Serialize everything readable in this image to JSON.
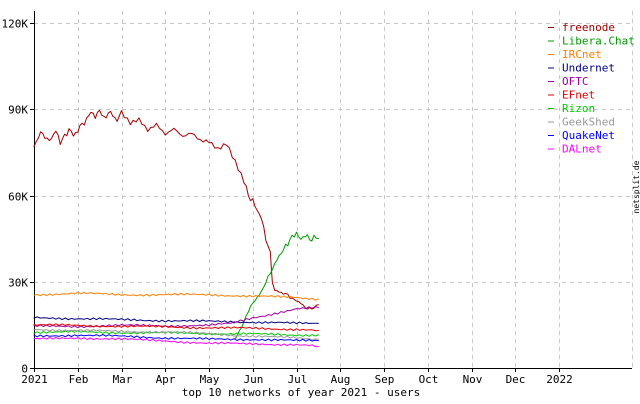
{
  "chart_data": {
    "type": "line",
    "title": "top 10 networks of year 2021 - users",
    "watermark": "netsplit.de",
    "x_ticks": [
      "2021",
      "Feb",
      "Mar",
      "Apr",
      "May",
      "Jun",
      "Jul",
      "Aug",
      "Sep",
      "Oct",
      "Nov",
      "Dec",
      "2022"
    ],
    "y_ticks": [
      "0",
      "30K",
      "60K",
      "90K",
      "120K"
    ],
    "ylim": [
      0,
      120000
    ],
    "xlim_months": [
      0,
      12
    ],
    "grid": true,
    "legend_position": "top-right",
    "series": [
      {
        "name": "freenode",
        "color": "#a00000",
        "x": [
          0.0,
          0.1,
          0.2,
          0.3,
          0.4,
          0.5,
          0.6,
          0.7,
          0.8,
          0.9,
          1.0,
          1.1,
          1.2,
          1.3,
          1.4,
          1.5,
          1.6,
          1.7,
          1.8,
          1.9,
          2.0,
          2.2,
          2.4,
          2.6,
          2.8,
          3.0,
          3.2,
          3.4,
          3.6,
          3.8,
          4.0,
          4.2,
          4.4,
          4.6,
          4.8,
          4.9,
          5.0,
          5.1,
          5.2,
          5.3,
          5.4,
          5.45,
          5.5,
          5.6,
          5.7,
          5.8,
          5.9,
          6.0,
          6.1,
          6.2,
          6.3,
          6.4,
          6.5
        ],
        "values": [
          77000,
          80500,
          82000,
          79000,
          80000,
          82500,
          78500,
          80500,
          83000,
          81000,
          82500,
          85000,
          86000,
          89500,
          87000,
          90000,
          86500,
          89000,
          88000,
          86000,
          89000,
          85500,
          87000,
          83000,
          85000,
          81000,
          83000,
          80000,
          81500,
          79000,
          79000,
          76500,
          78500,
          72000,
          65000,
          60000,
          58000,
          55000,
          52000,
          45000,
          40000,
          30000,
          27000,
          26500,
          26000,
          25500,
          24000,
          23500,
          22500,
          21000,
          20500,
          21000,
          22000
        ]
      },
      {
        "name": "Libera.Chat",
        "color": "#009900",
        "x": [
          4.6,
          4.7,
          4.8,
          4.9,
          5.0,
          5.1,
          5.2,
          5.3,
          5.4,
          5.5,
          5.6,
          5.7,
          5.8,
          5.9,
          6.0,
          6.1,
          6.2,
          6.3,
          6.4,
          6.5
        ],
        "values": [
          10000,
          13000,
          16000,
          20000,
          22500,
          24500,
          26500,
          30000,
          33000,
          36000,
          39000,
          41000,
          43500,
          45500,
          47000,
          44500,
          46500,
          44500,
          45500,
          45000
        ]
      },
      {
        "name": "IRCnet",
        "color": "#ff8000",
        "x": [
          0,
          1,
          2,
          3,
          4,
          5,
          6,
          6.5
        ],
        "values": [
          25500,
          26000,
          25500,
          25500,
          25500,
          25000,
          24500,
          24000
        ]
      },
      {
        "name": "Undernet",
        "color": "#000080",
        "x": [
          0,
          1,
          2,
          3,
          4,
          5,
          5.5,
          6,
          6.5
        ],
        "values": [
          17500,
          17200,
          16800,
          16500,
          16200,
          16000,
          15800,
          15500,
          15500
        ]
      },
      {
        "name": "OFTC",
        "color": "#a000a0",
        "x": [
          0,
          1,
          2,
          3,
          4,
          4.5,
          5,
          5.5,
          6,
          6.5
        ],
        "values": [
          14500,
          14500,
          14800,
          14700,
          14800,
          15500,
          17500,
          19000,
          20500,
          21000
        ]
      },
      {
        "name": "EFnet",
        "color": "#e00000",
        "x": [
          0,
          1,
          2,
          3,
          4,
          5,
          6,
          6.5
        ],
        "values": [
          15000,
          14800,
          14500,
          14300,
          14000,
          13800,
          13500,
          13000
        ]
      },
      {
        "name": "Rizon",
        "color": "#00cc00",
        "x": [
          0,
          1,
          2,
          3,
          4,
          5,
          6,
          6.5
        ],
        "values": [
          12500,
          12500,
          12300,
          12200,
          12000,
          11800,
          11500,
          11500
        ]
      },
      {
        "name": "GeekShed",
        "color": "#999999",
        "x": [
          0,
          1,
          2,
          3,
          4,
          5,
          6,
          6.5
        ],
        "values": [
          13500,
          13000,
          12800,
          12500,
          12000,
          11000,
          10500,
          10000
        ]
      },
      {
        "name": "QuakeNet",
        "color": "#0000ff",
        "x": [
          0,
          1,
          2,
          3,
          4,
          5,
          6,
          6.5
        ],
        "values": [
          11000,
          11500,
          11000,
          10500,
          10000,
          10000,
          9500,
          9500
        ]
      },
      {
        "name": "DALnet",
        "color": "#ff00ff",
        "x": [
          0,
          1,
          2,
          3,
          4,
          5,
          6,
          6.5
        ],
        "values": [
          10000,
          10500,
          10000,
          9500,
          8500,
          8500,
          8000,
          7500
        ]
      }
    ]
  }
}
